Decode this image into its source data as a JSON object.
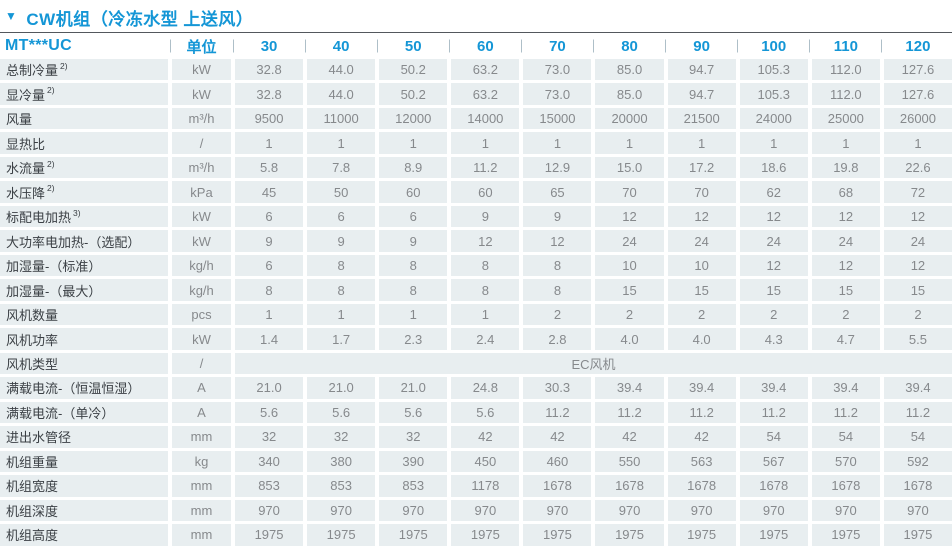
{
  "title": {
    "marker": "▼",
    "text": "CW机组（冷冻水型 上送风）"
  },
  "colors": {
    "accent_blue": "#1496d6",
    "cell_background": "#e8eef0",
    "label_text": "#3b4045",
    "value_text": "#86898c",
    "divider": "#53585d"
  },
  "table": {
    "model_header": "MT***UC",
    "unit_header": "单位",
    "model_columns": [
      "30",
      "40",
      "50",
      "60",
      "70",
      "80",
      "90",
      "100",
      "110",
      "120"
    ],
    "rows": [
      {
        "label": "总制冷量",
        "sup": "2)",
        "unit": "kW",
        "values": [
          "32.8",
          "44.0",
          "50.2",
          "63.2",
          "73.0",
          "85.0",
          "94.7",
          "105.3",
          "112.0",
          "127.6"
        ]
      },
      {
        "label": "显冷量",
        "sup": "2)",
        "unit": "kW",
        "values": [
          "32.8",
          "44.0",
          "50.2",
          "63.2",
          "73.0",
          "85.0",
          "94.7",
          "105.3",
          "112.0",
          "127.6"
        ]
      },
      {
        "label": "风量",
        "sup": "",
        "unit": "m³/h",
        "values": [
          "9500",
          "11000",
          "12000",
          "14000",
          "15000",
          "20000",
          "21500",
          "24000",
          "25000",
          "26000"
        ]
      },
      {
        "label": "显热比",
        "sup": "",
        "unit": "/",
        "values": [
          "1",
          "1",
          "1",
          "1",
          "1",
          "1",
          "1",
          "1",
          "1",
          "1"
        ]
      },
      {
        "label": "水流量",
        "sup": "2)",
        "unit": "m³/h",
        "values": [
          "5.8",
          "7.8",
          "8.9",
          "11.2",
          "12.9",
          "15.0",
          "17.2",
          "18.6",
          "19.8",
          "22.6"
        ]
      },
      {
        "label": "水压降",
        "sup": "2)",
        "unit": "kPa",
        "values": [
          "45",
          "50",
          "60",
          "60",
          "65",
          "70",
          "70",
          "62",
          "68",
          "72"
        ]
      },
      {
        "label": "标配电加热",
        "sup": "3)",
        "unit": "kW",
        "values": [
          "6",
          "6",
          "6",
          "9",
          "9",
          "12",
          "12",
          "12",
          "12",
          "12"
        ]
      },
      {
        "label": "大功率电加热-（选配）",
        "sup": "",
        "unit": "kW",
        "values": [
          "9",
          "9",
          "9",
          "12",
          "12",
          "24",
          "24",
          "24",
          "24",
          "24"
        ]
      },
      {
        "label": "加湿量-（标准）",
        "sup": "",
        "unit": "kg/h",
        "values": [
          "6",
          "8",
          "8",
          "8",
          "8",
          "10",
          "10",
          "12",
          "12",
          "12"
        ]
      },
      {
        "label": "加湿量-（最大）",
        "sup": "",
        "unit": "kg/h",
        "values": [
          "8",
          "8",
          "8",
          "8",
          "8",
          "15",
          "15",
          "15",
          "15",
          "15"
        ]
      },
      {
        "label": "风机数量",
        "sup": "",
        "unit": "pcs",
        "values": [
          "1",
          "1",
          "1",
          "1",
          "2",
          "2",
          "2",
          "2",
          "2",
          "2"
        ]
      },
      {
        "label": "风机功率",
        "sup": "",
        "unit": "kW",
        "values": [
          "1.4",
          "1.7",
          "2.3",
          "2.4",
          "2.8",
          "4.0",
          "4.0",
          "4.3",
          "4.7",
          "5.5"
        ]
      },
      {
        "label": "风机类型",
        "sup": "",
        "unit": "/",
        "merged": "EC风机"
      },
      {
        "label": "满载电流-（恒温恒湿）",
        "sup": "",
        "unit": "A",
        "values": [
          "21.0",
          "21.0",
          "21.0",
          "24.8",
          "30.3",
          "39.4",
          "39.4",
          "39.4",
          "39.4",
          "39.4"
        ]
      },
      {
        "label": "满载电流-（单冷）",
        "sup": "",
        "unit": "A",
        "values": [
          "5.6",
          "5.6",
          "5.6",
          "5.6",
          "11.2",
          "11.2",
          "11.2",
          "11.2",
          "11.2",
          "11.2"
        ]
      },
      {
        "label": "进出水管径",
        "sup": "",
        "unit": "mm",
        "values": [
          "32",
          "32",
          "32",
          "42",
          "42",
          "42",
          "42",
          "54",
          "54",
          "54"
        ]
      },
      {
        "label": "机组重量",
        "sup": "",
        "unit": "kg",
        "values": [
          "340",
          "380",
          "390",
          "450",
          "460",
          "550",
          "563",
          "567",
          "570",
          "592"
        ]
      },
      {
        "label": "机组宽度",
        "sup": "",
        "unit": "mm",
        "values": [
          "853",
          "853",
          "853",
          "1178",
          "1678",
          "1678",
          "1678",
          "1678",
          "1678",
          "1678"
        ]
      },
      {
        "label": "机组深度",
        "sup": "",
        "unit": "mm",
        "values": [
          "970",
          "970",
          "970",
          "970",
          "970",
          "970",
          "970",
          "970",
          "970",
          "970"
        ]
      },
      {
        "label": "机组高度",
        "sup": "",
        "unit": "mm",
        "values": [
          "1975",
          "1975",
          "1975",
          "1975",
          "1975",
          "1975",
          "1975",
          "1975",
          "1975",
          "1975"
        ]
      }
    ]
  }
}
